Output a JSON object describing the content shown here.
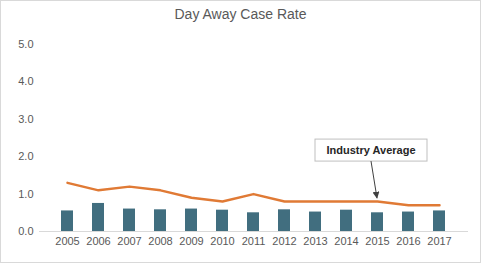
{
  "chart_data": {
    "type": "bar",
    "title": "Day Away Case Rate",
    "categories": [
      "2005",
      "2006",
      "2007",
      "2008",
      "2009",
      "2010",
      "2011",
      "2012",
      "2013",
      "2014",
      "2015",
      "2016",
      "2017"
    ],
    "series": [
      {
        "type": "bar",
        "color": "#416e7f",
        "values": [
          0.55,
          0.75,
          0.6,
          0.58,
          0.6,
          0.57,
          0.5,
          0.58,
          0.52,
          0.57,
          0.5,
          0.52,
          0.55
        ]
      },
      {
        "type": "line",
        "color": "#e07a35",
        "values": [
          1.3,
          1.1,
          1.2,
          1.1,
          0.9,
          0.8,
          1.0,
          0.8,
          0.8,
          0.8,
          0.8,
          0.7,
          0.7
        ]
      }
    ],
    "annotations": [
      {
        "text": "Industry Average",
        "x": "2015"
      }
    ],
    "ylim": [
      0,
      5
    ],
    "yticks": [
      {
        "value": 0,
        "label": "0.0"
      },
      {
        "value": 1,
        "label": "1.0"
      },
      {
        "value": 2,
        "label": "2.0"
      },
      {
        "value": 3,
        "label": "3.0"
      },
      {
        "value": 4,
        "label": "4.0"
      },
      {
        "value": 5,
        "label": "5.0"
      }
    ],
    "grid": false
  }
}
